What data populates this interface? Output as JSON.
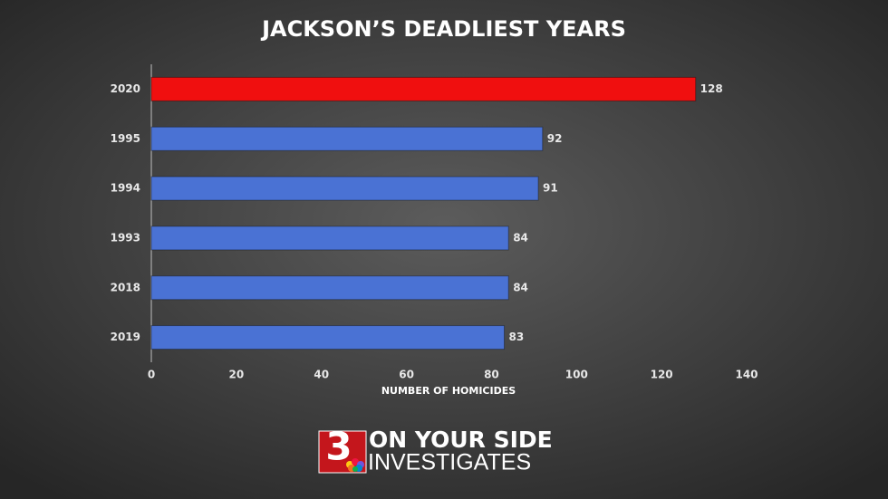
{
  "chart_data": {
    "type": "bar",
    "orientation": "horizontal",
    "title": "JACKSON’S DEADLIEST YEARS",
    "categories": [
      "2020",
      "1995",
      "1994",
      "1993",
      "2018",
      "2019"
    ],
    "values": [
      128,
      92,
      91,
      84,
      84,
      83
    ],
    "colors": [
      "#f00f0f",
      "#4a72d4",
      "#4a72d4",
      "#4a72d4",
      "#4a72d4",
      "#4a72d4"
    ],
    "xlim": [
      0,
      140
    ],
    "xticks": [
      0,
      20,
      40,
      60,
      80,
      100,
      120,
      140
    ],
    "xlabel": "NUMBER OF HOMICIDES",
    "grid": false
  },
  "logo": {
    "number": "3",
    "line1": "ON YOUR SIDE",
    "line2": "INVESTIGATES"
  }
}
